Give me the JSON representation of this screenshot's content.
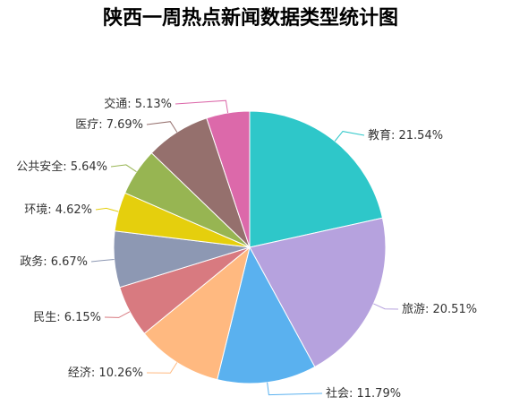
{
  "chart_data": {
    "type": "pie",
    "title": "陕西一周热点新闻数据类型统计图",
    "slices": [
      {
        "name": "教育",
        "value": 21.54,
        "label": "教育: 21.54%",
        "color": "#2ec7c9"
      },
      {
        "name": "旅游",
        "value": 20.51,
        "label": "旅游: 20.51%",
        "color": "#b6a2de"
      },
      {
        "name": "社会",
        "value": 11.79,
        "label": "社会: 11.79%",
        "color": "#5ab1ef"
      },
      {
        "name": "经济",
        "value": 10.26,
        "label": "经济: 10.26%",
        "color": "#ffb980"
      },
      {
        "name": "民生",
        "value": 6.15,
        "label": "民生: 6.15%",
        "color": "#d87a80"
      },
      {
        "name": "政务",
        "value": 6.67,
        "label": "政务: 6.67%",
        "color": "#8d98b3"
      },
      {
        "name": "环境",
        "value": 4.62,
        "label": "环境: 4.62%",
        "color": "#e5cf0d"
      },
      {
        "name": "公共安全",
        "value": 5.64,
        "label": "公共安全: 5.64%",
        "color": "#97b552"
      },
      {
        "name": "医疗",
        "value": 7.69,
        "label": "医疗: 7.69%",
        "color": "#95706d"
      },
      {
        "name": "交通",
        "value": 5.13,
        "label": "交通: 5.13%",
        "color": "#dc69aa"
      }
    ]
  }
}
